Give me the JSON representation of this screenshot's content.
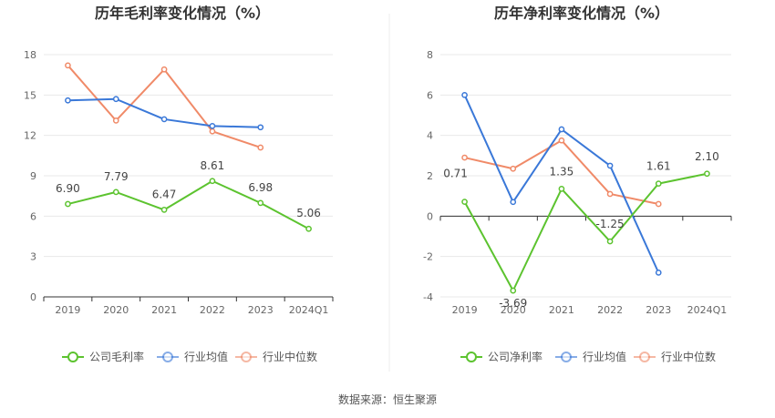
{
  "source_label": "数据来源：恒生聚源",
  "colors": {
    "company": "#5cc32f",
    "industry_avg": "#3a78d8",
    "industry_median": "#f08a68",
    "axis": "#333333",
    "grid": "#e8e8e8"
  },
  "chart_data": [
    {
      "type": "line",
      "title": "历年毛利率变化情况（%）",
      "categories": [
        "2019",
        "2020",
        "2021",
        "2022",
        "2023",
        "2024Q1"
      ],
      "ylim": [
        0,
        18
      ],
      "yticks": [
        0,
        3,
        6,
        9,
        12,
        15,
        18
      ],
      "yticks_labels": [
        "0",
        "3",
        "6",
        "9",
        "12",
        "15",
        "18"
      ],
      "grid": true,
      "legend_position": "bottom",
      "series": [
        {
          "name": "公司毛利率",
          "key": "company",
          "values": [
            6.9,
            7.79,
            6.47,
            8.61,
            6.98,
            5.06
          ],
          "labels": [
            "6.90",
            "7.79",
            "6.47",
            "8.61",
            "6.98",
            "5.06"
          ]
        },
        {
          "name": "行业均值",
          "key": "industry_avg",
          "values": [
            14.6,
            14.7,
            13.2,
            12.7,
            12.6,
            null
          ]
        },
        {
          "name": "行业中位数",
          "key": "industry_median",
          "values": [
            17.2,
            13.1,
            16.9,
            12.3,
            11.1,
            null
          ]
        }
      ]
    },
    {
      "type": "line",
      "title": "历年净利率变化情况（%）",
      "categories": [
        "2019",
        "2020",
        "2021",
        "2022",
        "2023",
        "2024Q1"
      ],
      "ylim": [
        -4,
        8
      ],
      "yticks": [
        -4,
        -2,
        0,
        2,
        4,
        6,
        8
      ],
      "yticks_labels": [
        "-4",
        "-2",
        "0",
        "2",
        "4",
        "6",
        "8"
      ],
      "grid": true,
      "legend_position": "bottom",
      "series": [
        {
          "name": "公司净利率",
          "key": "company",
          "values": [
            0.71,
            -3.69,
            1.35,
            -1.25,
            1.61,
            2.1
          ],
          "labels": [
            "0.71",
            "-3.69",
            "1.35",
            "-1.25",
            "1.61",
            "2.10"
          ]
        },
        {
          "name": "行业均值",
          "key": "industry_avg",
          "values": [
            6.0,
            0.7,
            4.3,
            2.5,
            -2.8,
            null
          ]
        },
        {
          "name": "行业中位数",
          "key": "industry_median",
          "values": [
            2.9,
            2.35,
            3.75,
            1.1,
            0.6,
            null
          ]
        }
      ]
    }
  ]
}
